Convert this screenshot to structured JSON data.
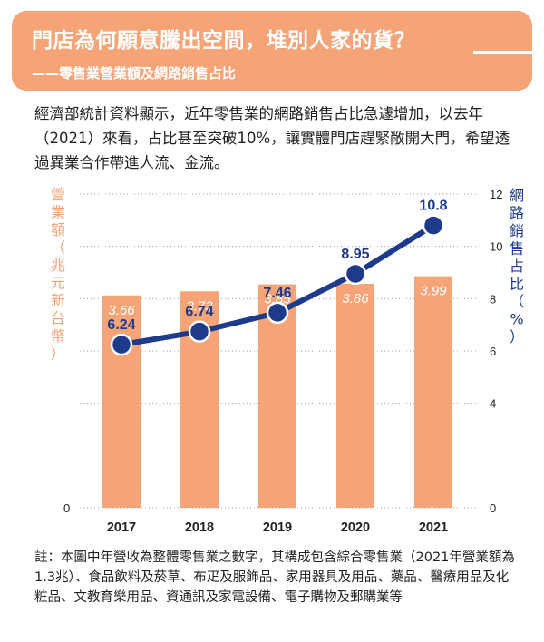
{
  "header": {
    "title": "門店為何願意騰出空間，堆別人家的貨？",
    "subtitle": "——零售業營業額及網路銷售占比"
  },
  "intro": "經濟部統計資料顯示，近年零售業的網路銷售占比急遽增加，以去年（2021）來看，占比甚至突破10%，讓實體門店趕緊敞開大門，希望透過異業合作帶進人流、金流。",
  "footnote": "註：本圖中年營收為整體零售業之數字，其構成包含綜合零售業（2021年營業額為1.3兆）、食品飲料及菸草、布疋及服飾品、家用器具及用品、藥品、醫療用品及化粧品、文教育樂用品、資通訊及家電設備、電子購物及郵購業等",
  "colors": {
    "accent": "#f4a477",
    "bar": "#f4a477",
    "line": "#1e3a8a",
    "bar_label": "#ffffff",
    "grid": "#9c9c9c"
  },
  "chart_data": {
    "type": "bar+line",
    "categories": [
      "2017",
      "2018",
      "2019",
      "2020",
      "2021"
    ],
    "series": [
      {
        "values": [
          3.66,
          3.73,
          3.85,
          3.86,
          3.99
        ],
        "axis": "left",
        "kind": "bar"
      },
      {
        "values": [
          6.24,
          6.74,
          7.46,
          8.95,
          10.8
        ],
        "axis": "right",
        "kind": "line"
      }
    ],
    "ylabel_left": "營業額（兆元新台幣）",
    "ylabel_right": "網路銷售占比（%）",
    "yleft_ticks": [
      "0"
    ],
    "yright_ticks": [
      "0",
      "4",
      "6",
      "8",
      "10",
      "12"
    ],
    "yright_range": [
      0,
      12
    ],
    "grid": true
  }
}
